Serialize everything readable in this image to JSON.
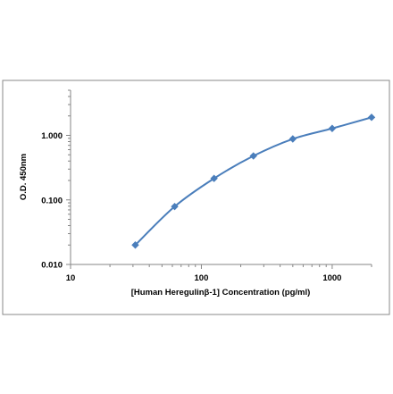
{
  "chart_data": {
    "type": "scatter",
    "x_scale": "log",
    "y_scale": "log",
    "xlabel": "[Human Heregulinβ-1] Concentration (pg/ml)",
    "ylabel": "O.D. 450nm",
    "xlim": [
      10,
      2000
    ],
    "ylim": [
      0.01,
      5
    ],
    "x_ticks": [
      "10",
      "100",
      "1000"
    ],
    "y_ticks": [
      "0.010",
      "0.100",
      "1.000"
    ],
    "grid": false,
    "legend": "none",
    "series": [
      {
        "marker": "diamond",
        "line": "smooth",
        "color": "#4a7ebb",
        "x": [
          31.25,
          62.5,
          125,
          250,
          500,
          1000,
          2000
        ],
        "y": [
          0.02,
          0.079,
          0.215,
          0.48,
          0.88,
          1.28,
          1.9
        ]
      }
    ]
  }
}
